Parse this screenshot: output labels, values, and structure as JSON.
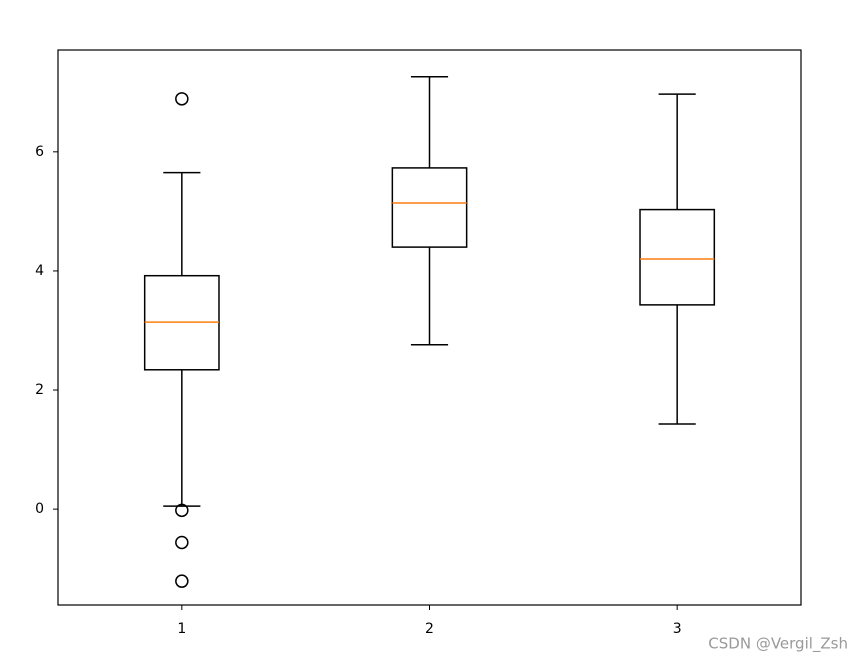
{
  "chart_data": {
    "type": "box",
    "categories": [
      "1",
      "2",
      "3"
    ],
    "boxes": [
      {
        "whislo": 0.05,
        "q1": 2.34,
        "med": 3.14,
        "q3": 3.92,
        "whishi": 5.65,
        "fliers": [
          6.89,
          -0.02,
          -0.56,
          -1.21
        ]
      },
      {
        "whislo": 2.76,
        "q1": 4.4,
        "med": 5.14,
        "q3": 5.73,
        "whishi": 7.26,
        "fliers": []
      },
      {
        "whislo": 1.43,
        "q1": 3.43,
        "med": 4.2,
        "q3": 5.03,
        "whishi": 6.97,
        "fliers": []
      }
    ],
    "box_color": "#000000",
    "median_color": "#ff7f0e",
    "ylim": [
      -1.61,
      7.71
    ],
    "yticks": [
      0,
      2,
      4,
      6
    ],
    "watermark": "CSDN @Vergil_Zsh"
  }
}
